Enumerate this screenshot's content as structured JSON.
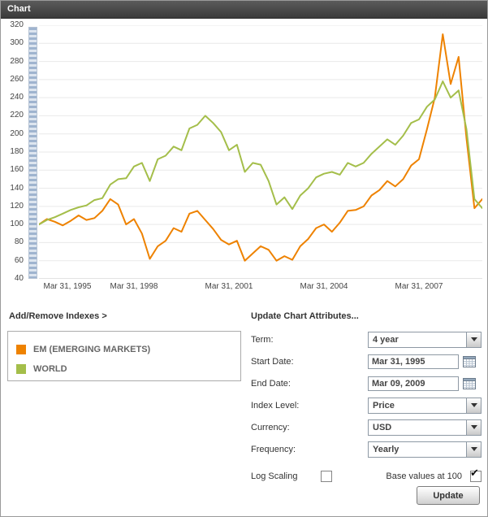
{
  "header": {
    "title": "Chart"
  },
  "panel": {
    "add_remove_label": "Add/Remove Indexes >",
    "attributes_heading": "Update Chart Attributes..."
  },
  "attributes": {
    "term": {
      "label": "Term:",
      "value": "4 year"
    },
    "start_date": {
      "label": "Start Date:",
      "value": "Mar 31, 1995"
    },
    "end_date": {
      "label": "End Date:",
      "value": "Mar 09, 2009"
    },
    "index_level": {
      "label": "Index Level:",
      "value": "Price"
    },
    "currency": {
      "label": "Currency:",
      "value": "USD"
    },
    "frequency": {
      "label": "Frequency:",
      "value": "Yearly"
    },
    "log_scaling": {
      "label": "Log Scaling",
      "checked": false
    },
    "base_values": {
      "label": "Base values at 100",
      "checked": true
    },
    "update_button_label": "Update"
  },
  "chart_data": {
    "type": "line",
    "title": "",
    "xlabel": "",
    "ylabel": "",
    "ylim": [
      40,
      320
    ],
    "ytick_step": 20,
    "grid": "horizontal",
    "legend_position": "below-left",
    "x_frequency": "quarterly, Mar 1995 to Mar 2009",
    "x_tick_labels": [
      "Mar 31, 1995",
      "Mar 31, 1998",
      "Mar 31, 2001",
      "Mar 31, 2004",
      "Mar 31, 2007"
    ],
    "x_tick_indices": [
      0,
      12,
      24,
      36,
      48
    ],
    "series": [
      {
        "name": "EM (EMERGING MARKETS)",
        "color": "#EE8200",
        "values": [
          100,
          106,
          103,
          99,
          104,
          110,
          105,
          107,
          115,
          128,
          122,
          100,
          106,
          90,
          62,
          76,
          82,
          96,
          92,
          112,
          115,
          105,
          95,
          83,
          78,
          82,
          60,
          68,
          76,
          72,
          60,
          65,
          61,
          76,
          84,
          96,
          100,
          92,
          102,
          115,
          116,
          120,
          132,
          138,
          148,
          142,
          150,
          165,
          172,
          205,
          240,
          310,
          255,
          285,
          195,
          118,
          128
        ]
      },
      {
        "name": "WORLD",
        "color": "#A4BE4A",
        "values": [
          100,
          105,
          108,
          112,
          116,
          119,
          121,
          127,
          129,
          144,
          150,
          151,
          164,
          168,
          148,
          172,
          176,
          186,
          182,
          206,
          210,
          220,
          212,
          202,
          182,
          188,
          158,
          168,
          166,
          148,
          122,
          130,
          117,
          132,
          140,
          152,
          156,
          158,
          155,
          168,
          164,
          168,
          178,
          186,
          194,
          188,
          198,
          212,
          216,
          230,
          238,
          258,
          240,
          248,
          205,
          128,
          118
        ]
      }
    ]
  }
}
